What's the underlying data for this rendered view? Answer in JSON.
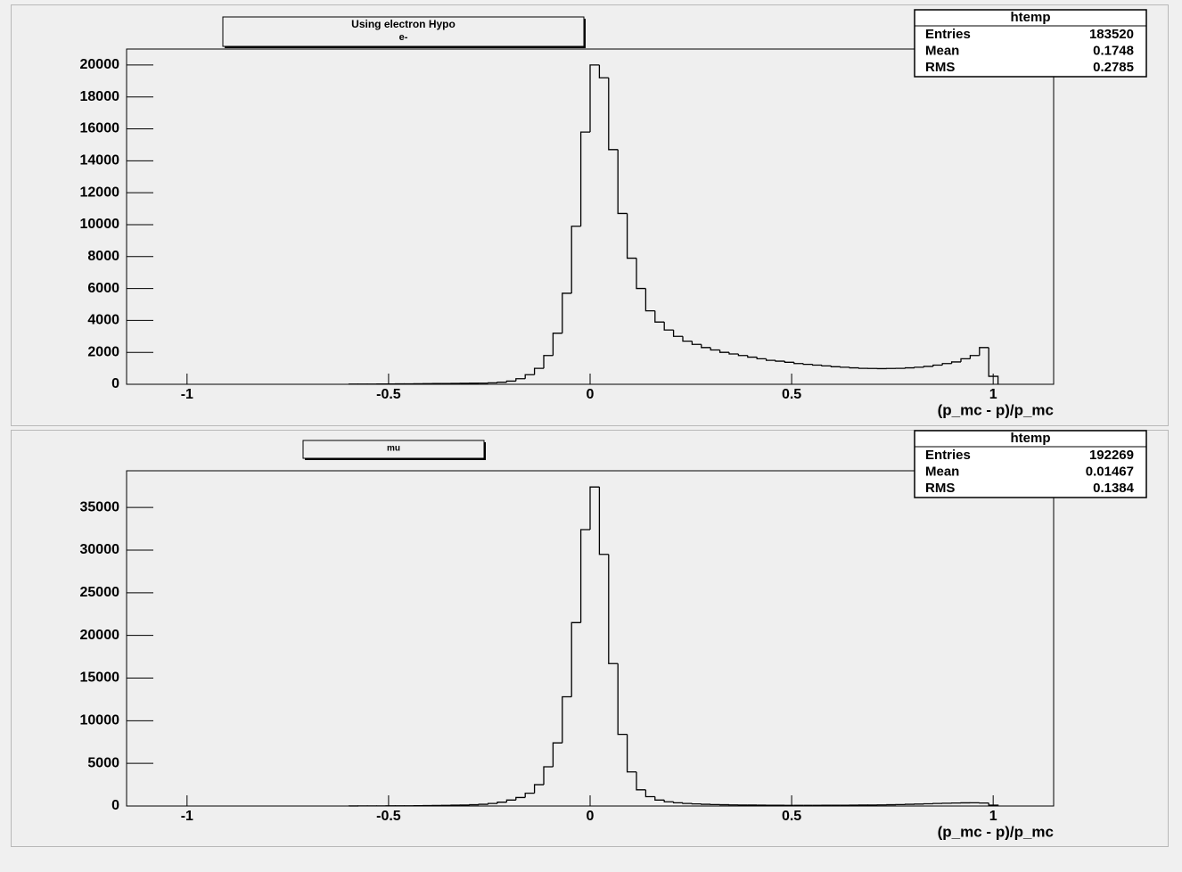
{
  "chart_data": [
    {
      "type": "histogram",
      "title": "Using electron Hypo",
      "subtitle": "e-",
      "x_label": "(p_mc - p)/p_mc",
      "color": "#000000",
      "bins": [
        -0.598,
        -0.575,
        -0.552,
        -0.529,
        -0.506,
        -0.483,
        -0.46,
        -0.437,
        -0.414,
        -0.391,
        -0.368,
        -0.345,
        -0.322,
        -0.299,
        -0.276,
        -0.253,
        -0.23,
        -0.207,
        -0.184,
        -0.161,
        -0.138,
        -0.115,
        -0.092,
        -0.069,
        -0.046,
        -0.023,
        0,
        0.023,
        0.046,
        0.069,
        0.092,
        0.115,
        0.138,
        0.161,
        0.184,
        0.207,
        0.23,
        0.253,
        0.276,
        0.299,
        0.322,
        0.345,
        0.368,
        0.391,
        0.414,
        0.437,
        0.46,
        0.483,
        0.506,
        0.529,
        0.552,
        0.575,
        0.598,
        0.621,
        0.644,
        0.667,
        0.69,
        0.713,
        0.736,
        0.759,
        0.782,
        0.805,
        0.828,
        0.851,
        0.874,
        0.897,
        0.92,
        0.943,
        0.966,
        0.989,
        1.012
      ],
      "counts": [
        10,
        12,
        15,
        18,
        20,
        25,
        30,
        35,
        40,
        45,
        50,
        55,
        60,
        65,
        70,
        90,
        130,
        200,
        350,
        600,
        1000,
        1800,
        3200,
        5700,
        9900,
        15800,
        20000,
        19200,
        14700,
        10700,
        7900,
        6000,
        4600,
        3900,
        3400,
        3000,
        2700,
        2500,
        2300,
        2150,
        2000,
        1900,
        1800,
        1700,
        1600,
        1500,
        1450,
        1380,
        1300,
        1250,
        1200,
        1150,
        1100,
        1070,
        1030,
        1000,
        990,
        980,
        990,
        1000,
        1030,
        1070,
        1120,
        1200,
        1300,
        1400,
        1600,
        1800,
        2300,
        500
      ],
      "xlim": [
        -1.15,
        1.15
      ],
      "xticks": [
        -1,
        -0.5,
        0,
        0.5,
        1
      ],
      "ylim": [
        0,
        21000
      ],
      "yticks": [
        0,
        2000,
        4000,
        6000,
        8000,
        10000,
        12000,
        14000,
        16000,
        18000,
        20000
      ],
      "stats": {
        "title": "htemp",
        "rows": [
          [
            "Entries",
            183520
          ],
          [
            "Mean",
            0.1748
          ],
          [
            "RMS",
            0.2785
          ]
        ]
      }
    },
    {
      "type": "histogram",
      "title": "mu",
      "x_label": "(p_mc - p)/p_mc",
      "color": "#000000",
      "bins": [
        -0.598,
        -0.575,
        -0.552,
        -0.529,
        -0.506,
        -0.483,
        -0.46,
        -0.437,
        -0.414,
        -0.391,
        -0.368,
        -0.345,
        -0.322,
        -0.299,
        -0.276,
        -0.253,
        -0.23,
        -0.207,
        -0.184,
        -0.161,
        -0.138,
        -0.115,
        -0.092,
        -0.069,
        -0.046,
        -0.023,
        0,
        0.023,
        0.046,
        0.069,
        0.092,
        0.115,
        0.138,
        0.161,
        0.184,
        0.207,
        0.23,
        0.253,
        0.276,
        0.299,
        0.322,
        0.345,
        0.368,
        0.391,
        0.414,
        0.437,
        0.46,
        0.483,
        0.506,
        0.529,
        0.552,
        0.575,
        0.598,
        0.621,
        0.644,
        0.667,
        0.69,
        0.713,
        0.736,
        0.759,
        0.782,
        0.805,
        0.828,
        0.851,
        0.874,
        0.897,
        0.92,
        0.943,
        0.966,
        0.989,
        1.012
      ],
      "counts": [
        8,
        10,
        12,
        15,
        20,
        25,
        30,
        40,
        50,
        65,
        80,
        100,
        120,
        150,
        200,
        300,
        450,
        700,
        1000,
        1500,
        2500,
        4600,
        7400,
        12800,
        21500,
        32400,
        37400,
        29500,
        16700,
        8400,
        4000,
        1900,
        1100,
        700,
        500,
        380,
        300,
        250,
        200,
        170,
        150,
        130,
        120,
        110,
        100,
        90,
        85,
        80,
        80,
        80,
        80,
        85,
        90,
        95,
        100,
        110,
        120,
        130,
        150,
        170,
        200,
        230,
        260,
        300,
        330,
        350,
        370,
        380,
        350,
        100
      ],
      "xlim": [
        -1.15,
        1.15
      ],
      "xticks": [
        -1,
        -0.5,
        0,
        0.5,
        1
      ],
      "ylim": [
        0,
        39300
      ],
      "yticks": [
        0,
        5000,
        10000,
        15000,
        20000,
        25000,
        30000,
        35000
      ],
      "stats": {
        "title": "htemp",
        "rows": [
          [
            "Entries",
            192269
          ],
          [
            "Mean",
            0.01467
          ],
          [
            "RMS",
            0.1384
          ]
        ]
      }
    }
  ]
}
